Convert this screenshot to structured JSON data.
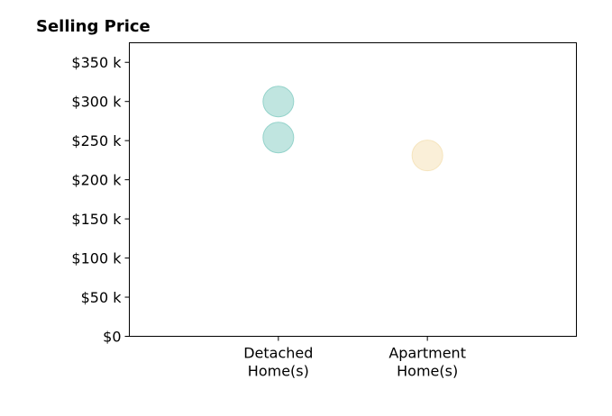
{
  "chart_data": {
    "type": "scatter",
    "title": "Selling Price",
    "xlabel": "",
    "ylabel": "",
    "categories": [
      "Detached\nHome(s)",
      "Apartment\nHome(s)"
    ],
    "x_range": [
      0,
      3
    ],
    "ylim": [
      0,
      375000
    ],
    "y_ticks": [
      0,
      50000,
      100000,
      150000,
      200000,
      250000,
      300000,
      350000
    ],
    "y_tick_labels": [
      "$0",
      "$50 k",
      "$100 k",
      "$150 k",
      "$200 k",
      "$250 k",
      "$300 k",
      "$350 k"
    ],
    "grid": false,
    "legend": "none",
    "series": [
      {
        "color": "#8ccfc6",
        "points": [
          {
            "category": "Detached\nHome(s)",
            "y": 300000
          },
          {
            "category": "Detached\nHome(s)",
            "y": 254000
          }
        ]
      },
      {
        "color": "#f5e2b8",
        "points": [
          {
            "category": "Apartment\nHome(s)",
            "y": 231000
          }
        ]
      }
    ]
  }
}
